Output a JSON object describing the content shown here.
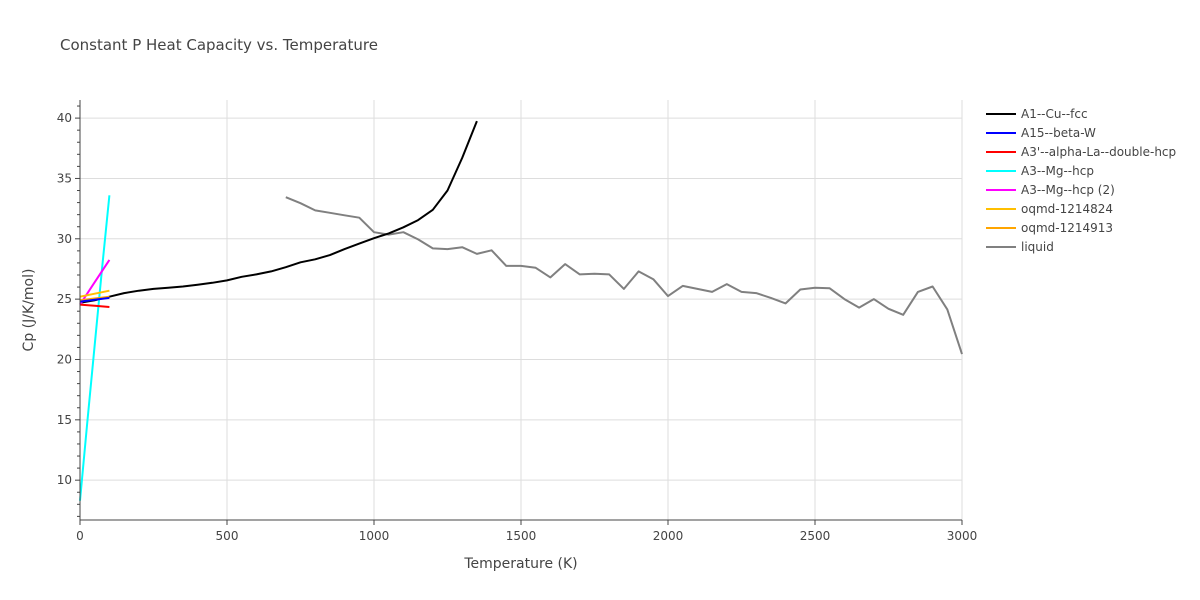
{
  "chart_data": {
    "type": "line",
    "title": "Constant P Heat Capacity vs. Temperature",
    "xlabel": "Temperature (K)",
    "ylabel": "Cp (J/K/mol)",
    "xlim": [
      0,
      3000
    ],
    "ylim": [
      6.7,
      41.5
    ],
    "xticks": [
      0,
      500,
      1000,
      1500,
      2000,
      2500,
      3000
    ],
    "xtick_labels": [
      "0",
      "500",
      "1000",
      "1500",
      "2000",
      "2500",
      "3000"
    ],
    "yticks": [
      10,
      15,
      20,
      25,
      30,
      35,
      40
    ],
    "ytick_labels": [
      "10",
      "15",
      "20",
      "25",
      "30",
      "35",
      "40"
    ],
    "grid": true,
    "legend_position": "top-right outside",
    "series": [
      {
        "name": "A1--Cu--fcc",
        "color": "#000000",
        "x": [
          0,
          50,
          100,
          150,
          200,
          250,
          300,
          350,
          400,
          450,
          500,
          550,
          600,
          650,
          700,
          750,
          800,
          850,
          900,
          950,
          1000,
          1050,
          1100,
          1150,
          1200,
          1250,
          1300,
          1350
        ],
        "y": [
          24.7,
          24.9,
          25.2,
          25.5,
          25.7,
          25.85,
          25.95,
          26.05,
          26.2,
          26.35,
          26.55,
          26.85,
          27.05,
          27.3,
          27.65,
          28.05,
          28.3,
          28.65,
          29.15,
          29.6,
          30.05,
          30.45,
          30.95,
          31.55,
          32.4,
          34.0,
          36.7,
          39.75
        ]
      },
      {
        "name": "A15--beta-W",
        "color": "#0000ff",
        "x": [
          0,
          50,
          100
        ],
        "y": [
          24.8,
          24.95,
          25.1
        ]
      },
      {
        "name": "A3'--alpha-La--double-hcp",
        "color": "#ff0000",
        "x": [
          0,
          50,
          100
        ],
        "y": [
          24.55,
          24.45,
          24.35
        ]
      },
      {
        "name": "A3--Mg--hcp",
        "color": "#00ffff",
        "x": [
          0,
          25,
          50,
          75,
          100
        ],
        "y": [
          8.3,
          14.8,
          21.2,
          27.5,
          33.6
        ]
      },
      {
        "name": "A3--Mg--hcp (2)",
        "color": "#ff00ff",
        "x": [
          0,
          50,
          100
        ],
        "y": [
          24.55,
          26.4,
          28.25
        ]
      },
      {
        "name": "oqmd-1214824",
        "color": "#ffbf00",
        "x": [
          0,
          50,
          100
        ],
        "y": [
          25.2,
          25.45,
          25.7
        ]
      },
      {
        "name": "oqmd-1214913",
        "color": "#ffa500",
        "x": [
          0,
          50,
          100
        ],
        "y": [
          24.9,
          25.05,
          25.2
        ]
      },
      {
        "name": "liquid",
        "color": "#808080",
        "x": [
          700,
          750,
          800,
          850,
          900,
          950,
          1000,
          1050,
          1100,
          1150,
          1200,
          1250,
          1300,
          1350,
          1400,
          1450,
          1500,
          1550,
          1600,
          1650,
          1700,
          1750,
          1800,
          1850,
          1900,
          1950,
          2000,
          2050,
          2100,
          2150,
          2200,
          2250,
          2300,
          2350,
          2400,
          2450,
          2500,
          2550,
          2600,
          2650,
          2700,
          2750,
          2800,
          2850,
          2900,
          2950,
          3000
        ],
        "y": [
          33.45,
          32.95,
          32.35,
          32.15,
          31.95,
          31.75,
          30.55,
          30.35,
          30.55,
          29.95,
          29.2,
          29.15,
          29.3,
          28.75,
          29.05,
          27.75,
          27.75,
          27.6,
          26.8,
          27.9,
          27.05,
          27.1,
          27.05,
          25.85,
          27.3,
          26.65,
          25.25,
          26.1,
          25.85,
          25.6,
          26.25,
          25.6,
          25.5,
          25.1,
          24.65,
          25.8,
          25.95,
          25.9,
          25.0,
          24.3,
          25.0,
          24.2,
          23.7,
          25.6,
          26.05,
          24.15,
          20.45
        ]
      }
    ]
  }
}
